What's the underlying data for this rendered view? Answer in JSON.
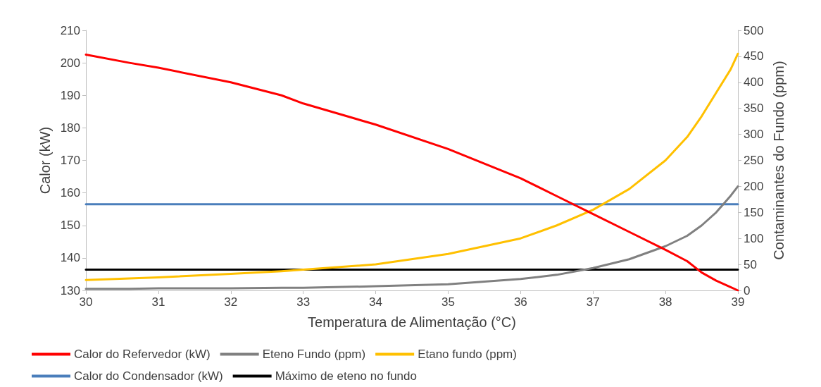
{
  "chart_data": {
    "type": "line",
    "xlabel": "Temperatura de Alimentação (°C)",
    "ylabel": "Calor (kW)",
    "y2label": "Contaminantes do Fundo (ppm)",
    "x": [
      30,
      30.6,
      31,
      32,
      32.7,
      33,
      34,
      35,
      36,
      36.5,
      37,
      37.5,
      38,
      38.3,
      38.5,
      38.7,
      38.9,
      39
    ],
    "series": [
      {
        "name": "Calor do Refervedor (kW)",
        "color": "#ff0000",
        "values": [
          202.5,
          200,
          198.5,
          194,
          190,
          187.5,
          181,
          173.5,
          164.5,
          159,
          153.5,
          148,
          142.5,
          139,
          135.5,
          133,
          131,
          130
        ]
      },
      {
        "name": "Eteno Fundo (ppm)",
        "color": "#808080",
        "axis": "y2",
        "values": [
          3,
          3,
          4,
          4,
          5,
          5,
          8,
          12,
          22,
          30,
          43,
          60,
          85,
          105,
          125,
          150,
          182,
          200
        ]
      },
      {
        "name": "Etano fundo (ppm)",
        "color": "#ffc000",
        "axis": "y2",
        "values": [
          20,
          23,
          25,
          32,
          37,
          40,
          50,
          70,
          100,
          125,
          155,
          195,
          250,
          295,
          335,
          380,
          425,
          455
        ]
      },
      {
        "name": "Calor do Condensador (kW)",
        "color": "#4a7ebb",
        "values": [
          156.5,
          156.5,
          156.5,
          156.5,
          156.5,
          156.5,
          156.5,
          156.5,
          156.5,
          156.5,
          156.5,
          156.5,
          156.5,
          156.5,
          156.5,
          156.5,
          156.5,
          156.5
        ]
      },
      {
        "name": "Máximo de eteno no fundo",
        "color": "#000000",
        "axis": "y2",
        "values": [
          40,
          40,
          40,
          40,
          40,
          40,
          40,
          40,
          40,
          40,
          40,
          40,
          40,
          40,
          40,
          40,
          40,
          40
        ]
      }
    ],
    "xlim": [
      30,
      39
    ],
    "xticks": [
      30,
      31,
      32,
      33,
      34,
      35,
      36,
      37,
      38,
      39
    ],
    "ylim": [
      130,
      210
    ],
    "yticks": [
      130,
      140,
      150,
      160,
      170,
      180,
      190,
      200,
      210
    ],
    "y2lim": [
      0,
      500
    ],
    "y2ticks": [
      0,
      50,
      100,
      150,
      200,
      250,
      300,
      350,
      400,
      450,
      500
    ],
    "grid": false,
    "legend": "bottom",
    "marker": "none",
    "line_style": "solid"
  }
}
